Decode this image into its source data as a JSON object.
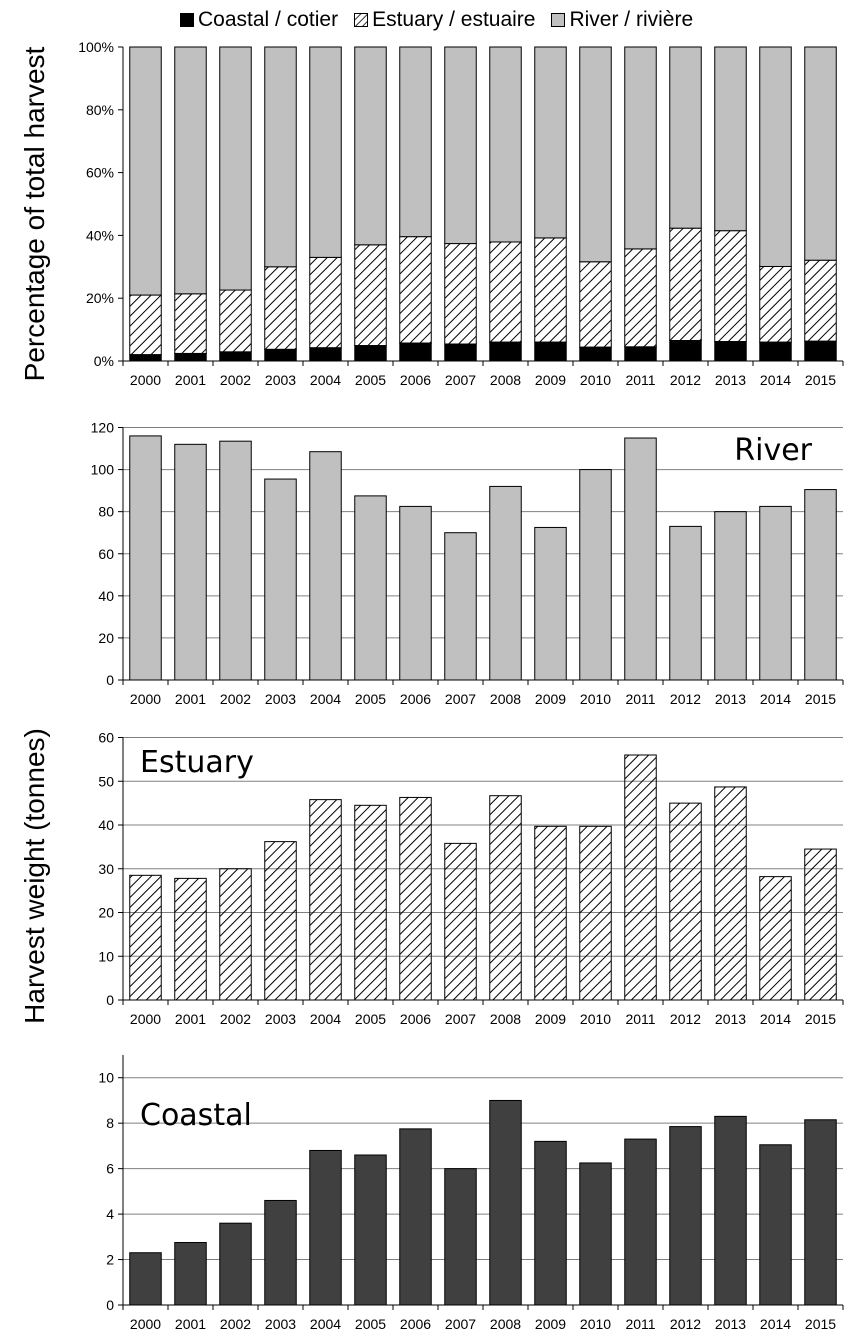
{
  "legend": {
    "coastal": "Coastal / cotier",
    "estuary": "Estuary / estuaire",
    "river": "River / rivière"
  },
  "ylabels": {
    "top": "Percentage of total harvest",
    "bottom": "Harvest weight  (tonnes)"
  },
  "colors": {
    "coastal": "#000000",
    "river": "#c0c0c0",
    "coastal_panel": "#404040",
    "grid": "#808080"
  },
  "chart_data": [
    {
      "type": "bar",
      "stacked": true,
      "normalized": true,
      "categories": [
        "2000",
        "2001",
        "2002",
        "2003",
        "2004",
        "2005",
        "2006",
        "2007",
        "2008",
        "2009",
        "2010",
        "2011",
        "2012",
        "2013",
        "2014",
        "2015"
      ],
      "series": [
        {
          "name": "Coastal / cotier",
          "values": [
            2,
            2.4,
            2.9,
            3.7,
            4.2,
            4.9,
            5.7,
            5.4,
            6,
            6,
            4.4,
            4.5,
            6.5,
            6.2,
            6,
            6.3
          ]
        },
        {
          "name": "Estuary / estuaire",
          "values": [
            19,
            19,
            19.7,
            26.3,
            28.8,
            32.1,
            33.9,
            32,
            31.9,
            33.2,
            27.2,
            31.2,
            35.8,
            35.3,
            24.1,
            25.8
          ]
        },
        {
          "name": "River / rivière",
          "values": [
            79,
            78.6,
            77.4,
            70,
            67,
            63,
            60.4,
            62.6,
            62.1,
            60.8,
            68.4,
            64.3,
            57.7,
            58.5,
            69.9,
            67.9
          ]
        }
      ],
      "yticks": [
        "0%",
        "20%",
        "40%",
        "60%",
        "80%",
        "100%"
      ],
      "ylim": [
        0,
        100
      ],
      "ylabel": "Percentage of total harvest",
      "legend": "top"
    },
    {
      "type": "bar",
      "title": "River",
      "categories": [
        "2000",
        "2001",
        "2002",
        "2003",
        "2004",
        "2005",
        "2006",
        "2007",
        "2008",
        "2009",
        "2010",
        "2011",
        "2012",
        "2013",
        "2014",
        "2015"
      ],
      "values": [
        116,
        112,
        113.5,
        95.5,
        108.5,
        87.5,
        82.5,
        70,
        92,
        72.5,
        100,
        115,
        73,
        80,
        82.5,
        90.5
      ],
      "yticks": [
        "0",
        "20",
        "40",
        "60",
        "80",
        "100",
        "120"
      ],
      "ylim": [
        0,
        120
      ],
      "grid": true
    },
    {
      "type": "bar",
      "title": "Estuary",
      "categories": [
        "2000",
        "2001",
        "2002",
        "2003",
        "2004",
        "2005",
        "2006",
        "2007",
        "2008",
        "2009",
        "2010",
        "2011",
        "2012",
        "2013",
        "2014",
        "2015"
      ],
      "values": [
        28.5,
        27.8,
        30,
        36.2,
        45.8,
        44.5,
        46.3,
        35.8,
        46.7,
        39.7,
        39.7,
        56,
        45,
        48.7,
        28.2,
        34.5
      ],
      "yticks": [
        "0",
        "10",
        "20",
        "30",
        "40",
        "50",
        "60"
      ],
      "ylim": [
        0,
        60
      ],
      "grid": true,
      "ylabel": "Harvest weight  (tonnes)"
    },
    {
      "type": "bar",
      "title": "Coastal",
      "categories": [
        "2000",
        "2001",
        "2002",
        "2003",
        "2004",
        "2005",
        "2006",
        "2007",
        "2008",
        "2009",
        "2010",
        "2011",
        "2012",
        "2013",
        "2014",
        "2015"
      ],
      "values": [
        2.3,
        2.75,
        3.6,
        4.6,
        6.8,
        6.6,
        7.75,
        6,
        9,
        7.2,
        6.25,
        7.3,
        7.85,
        8.3,
        7.05,
        8.15
      ],
      "yticks": [
        "0",
        "2",
        "4",
        "6",
        "8",
        "10"
      ],
      "ylim": [
        0,
        11
      ],
      "grid": true
    }
  ]
}
